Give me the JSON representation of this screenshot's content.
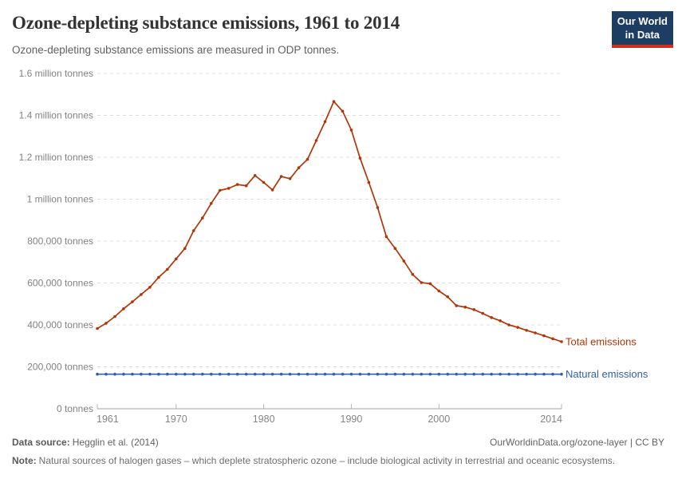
{
  "header": {
    "title": "Ozone-depleting substance emissions, 1961 to 2014",
    "subtitle": "Ozone-depleting substance emissions are measured in ODP tonnes.",
    "logo": {
      "line1": "Our World",
      "line2": "in Data",
      "bg_color": "#1d3d63",
      "accent_color": "#d42b21"
    }
  },
  "chart_data": {
    "type": "line",
    "title": "Ozone-depleting substance emissions, 1961 to 2014",
    "xlabel": "",
    "ylabel": "ODP tonnes",
    "ylim": [
      0,
      1600000
    ],
    "xlim": [
      1961,
      2014
    ],
    "grid": true,
    "legend_position": "right-of-line-ends",
    "x_ticks": [
      1961,
      1970,
      1980,
      1990,
      2000,
      2014
    ],
    "y_ticks": [
      {
        "value": 0,
        "label": "0 tonnes"
      },
      {
        "value": 200000,
        "label": "200,000 tonnes"
      },
      {
        "value": 400000,
        "label": "400,000 tonnes"
      },
      {
        "value": 600000,
        "label": "600,000 tonnes"
      },
      {
        "value": 800000,
        "label": "800,000 tonnes"
      },
      {
        "value": 1000000,
        "label": "1 million tonnes"
      },
      {
        "value": 1200000,
        "label": "1.2 million tonnes"
      },
      {
        "value": 1400000,
        "label": "1.4 million tonnes"
      },
      {
        "value": 1600000,
        "label": "1.6 million tonnes"
      }
    ],
    "x": [
      1961,
      1962,
      1963,
      1964,
      1965,
      1966,
      1967,
      1968,
      1969,
      1970,
      1971,
      1972,
      1973,
      1974,
      1975,
      1976,
      1977,
      1978,
      1979,
      1980,
      1981,
      1982,
      1983,
      1984,
      1985,
      1986,
      1987,
      1988,
      1989,
      1990,
      1991,
      1992,
      1993,
      1994,
      1995,
      1996,
      1997,
      1998,
      1999,
      2000,
      2001,
      2002,
      2003,
      2004,
      2005,
      2006,
      2007,
      2008,
      2009,
      2010,
      2011,
      2012,
      2013,
      2014
    ],
    "series": [
      {
        "name": "Total emissions",
        "color": "#b13507",
        "values": [
          383000,
          408000,
          440000,
          477000,
          510000,
          545000,
          580000,
          627000,
          665000,
          715000,
          765000,
          850000,
          910000,
          980000,
          1042000,
          1052000,
          1070000,
          1064000,
          1113000,
          1080000,
          1044000,
          1108000,
          1098000,
          1150000,
          1190000,
          1280000,
          1370000,
          1466000,
          1420000,
          1330000,
          1196000,
          1080000,
          960000,
          821000,
          765000,
          705000,
          641000,
          602000,
          597000,
          562000,
          534000,
          492000,
          485000,
          473000,
          455000,
          435000,
          420000,
          400000,
          388000,
          374000,
          362000,
          348000,
          334000,
          320000
        ]
      },
      {
        "name": "Natural emissions",
        "color": "#3360a9",
        "values": [
          165000,
          165000,
          165000,
          165000,
          165000,
          165000,
          165000,
          165000,
          165000,
          165000,
          165000,
          165000,
          165000,
          165000,
          165000,
          165000,
          165000,
          165000,
          165000,
          165000,
          165000,
          165000,
          165000,
          165000,
          165000,
          165000,
          165000,
          165000,
          165000,
          165000,
          165000,
          165000,
          165000,
          165000,
          165000,
          165000,
          165000,
          165000,
          165000,
          165000,
          165000,
          165000,
          165000,
          165000,
          165000,
          165000,
          165000,
          165000,
          165000,
          165000,
          165000,
          165000,
          165000,
          165000
        ]
      }
    ]
  },
  "footer": {
    "source_label": "Data source:",
    "source_text": "Hegglin et al. (2014)",
    "attribution": "OurWorldinData.org/ozone-layer | CC BY",
    "note_label": "Note:",
    "note_text": "Natural sources of halogen gases – which deplete stratospheric ozone – include biological activity in terrestrial and oceanic ecosystems."
  }
}
